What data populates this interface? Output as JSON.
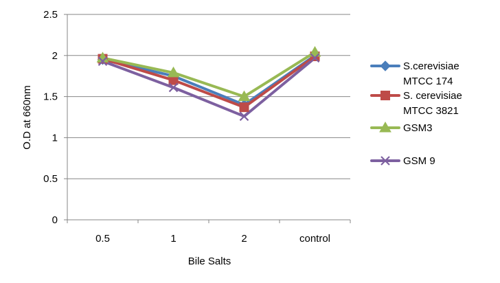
{
  "chart_data": {
    "type": "line",
    "title": "",
    "xlabel": "Bile Salts",
    "ylabel": "O.D at 660nm",
    "categories": [
      "0.5",
      "1",
      "2",
      "control"
    ],
    "ylim": [
      0,
      2.5
    ],
    "yticks": [
      "0",
      "0.5",
      "1",
      "1.5",
      "2",
      "2.5"
    ],
    "grid": "horizontal",
    "legend_position": "right",
    "series": [
      {
        "name": "S.cerevisiae MTCC 174",
        "legend_lines": [
          "S.cerevisiae",
          "MTCC 174"
        ],
        "values": [
          1.95,
          1.75,
          1.4,
          2.0
        ],
        "color": "#4a7ebb",
        "marker": "diamond"
      },
      {
        "name": "S. cerevisiae MTCC 3821",
        "legend_lines": [
          "S. cerevisiae",
          "MTCC 3821"
        ],
        "values": [
          1.96,
          1.7,
          1.37,
          1.99
        ],
        "color": "#be4b48",
        "marker": "square"
      },
      {
        "name": "GSM3",
        "legend_lines": [
          "GSM3"
        ],
        "values": [
          1.97,
          1.79,
          1.5,
          2.04
        ],
        "color": "#98b954",
        "marker": "triangle"
      },
      {
        "name": "GSM 9",
        "legend_lines": [
          "GSM 9"
        ],
        "values": [
          1.93,
          1.61,
          1.26,
          1.97
        ],
        "color": "#7d60a0",
        "marker": "x"
      }
    ]
  }
}
